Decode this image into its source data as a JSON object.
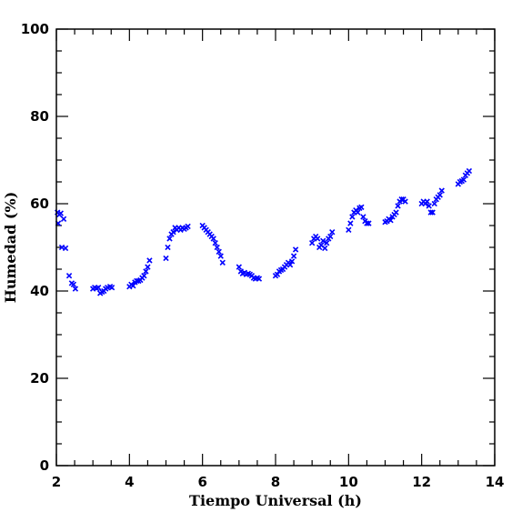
{
  "chart_data": {
    "type": "scatter",
    "title": "",
    "xlabel": "Tiempo Universal (h)",
    "ylabel": "Humedad (%)",
    "xlim": [
      2,
      14
    ],
    "ylim": [
      0,
      100
    ],
    "x_major_ticks": [
      2,
      4,
      6,
      8,
      10,
      12,
      14
    ],
    "y_major_ticks": [
      0,
      20,
      40,
      60,
      80,
      100
    ],
    "x_tick_labels": [
      "2",
      "4",
      "6",
      "8",
      "10",
      "12",
      "14"
    ],
    "y_tick_labels": [
      "0",
      "20",
      "40",
      "60",
      "80",
      "100"
    ],
    "marker": "x",
    "marker_color": "#0000ff",
    "grid": false,
    "series": [
      {
        "points": [
          [
            2.03,
            58.0
          ],
          [
            2.05,
            55.5
          ],
          [
            2.08,
            57.5
          ],
          [
            2.12,
            57.8
          ],
          [
            2.15,
            50.0
          ],
          [
            2.2,
            56.5
          ],
          [
            2.25,
            49.8
          ],
          [
            2.35,
            43.5
          ],
          [
            2.42,
            41.8
          ],
          [
            2.47,
            41.5
          ],
          [
            2.52,
            40.5
          ],
          [
            3.0,
            40.5
          ],
          [
            3.05,
            40.8
          ],
          [
            3.1,
            40.6
          ],
          [
            3.15,
            40.8
          ],
          [
            3.2,
            39.5
          ],
          [
            3.25,
            39.8
          ],
          [
            3.3,
            40.0
          ],
          [
            3.35,
            40.5
          ],
          [
            3.4,
            40.8
          ],
          [
            3.47,
            41.0
          ],
          [
            3.52,
            40.8
          ],
          [
            4.0,
            41.0
          ],
          [
            4.05,
            41.5
          ],
          [
            4.1,
            41.2
          ],
          [
            4.15,
            42.0
          ],
          [
            4.2,
            42.3
          ],
          [
            4.25,
            42.3
          ],
          [
            4.3,
            42.5
          ],
          [
            4.35,
            43.0
          ],
          [
            4.4,
            43.5
          ],
          [
            4.45,
            44.5
          ],
          [
            4.5,
            45.5
          ],
          [
            4.55,
            47.0
          ],
          [
            5.0,
            47.5
          ],
          [
            5.05,
            50.0
          ],
          [
            5.1,
            52.0
          ],
          [
            5.15,
            53.0
          ],
          [
            5.2,
            53.5
          ],
          [
            5.25,
            54.5
          ],
          [
            5.3,
            54.0
          ],
          [
            5.35,
            54.5
          ],
          [
            5.4,
            54.0
          ],
          [
            5.45,
            54.5
          ],
          [
            5.5,
            54.2
          ],
          [
            5.55,
            54.5
          ],
          [
            5.6,
            54.8
          ],
          [
            6.0,
            55.0
          ],
          [
            6.05,
            54.5
          ],
          [
            6.1,
            54.0
          ],
          [
            6.15,
            53.5
          ],
          [
            6.2,
            53.0
          ],
          [
            6.25,
            52.5
          ],
          [
            6.3,
            52.0
          ],
          [
            6.35,
            51.0
          ],
          [
            6.4,
            50.0
          ],
          [
            6.45,
            49.0
          ],
          [
            6.5,
            48.0
          ],
          [
            6.55,
            46.5
          ],
          [
            7.0,
            45.5
          ],
          [
            7.05,
            44.5
          ],
          [
            7.1,
            44.0
          ],
          [
            7.15,
            44.2
          ],
          [
            7.2,
            43.8
          ],
          [
            7.25,
            44.0
          ],
          [
            7.3,
            43.8
          ],
          [
            7.35,
            43.5
          ],
          [
            7.4,
            43.0
          ],
          [
            7.45,
            42.8
          ],
          [
            7.5,
            43.0
          ],
          [
            7.55,
            42.8
          ],
          [
            8.0,
            43.5
          ],
          [
            8.05,
            43.8
          ],
          [
            8.1,
            44.5
          ],
          [
            8.15,
            44.8
          ],
          [
            8.2,
            45.0
          ],
          [
            8.25,
            45.5
          ],
          [
            8.3,
            46.0
          ],
          [
            8.35,
            46.5
          ],
          [
            8.4,
            46.0
          ],
          [
            8.45,
            46.8
          ],
          [
            8.5,
            48.0
          ],
          [
            8.55,
            49.5
          ],
          [
            9.0,
            51.0
          ],
          [
            9.05,
            52.0
          ],
          [
            9.1,
            52.5
          ],
          [
            9.15,
            52.0
          ],
          [
            9.2,
            50.0
          ],
          [
            9.25,
            50.5
          ],
          [
            9.3,
            51.5
          ],
          [
            9.35,
            49.8
          ],
          [
            9.4,
            51.0
          ],
          [
            9.45,
            52.0
          ],
          [
            9.5,
            52.5
          ],
          [
            9.55,
            53.5
          ],
          [
            10.0,
            54.0
          ],
          [
            10.05,
            55.5
          ],
          [
            10.1,
            57.0
          ],
          [
            10.15,
            58.0
          ],
          [
            10.2,
            58.5
          ],
          [
            10.25,
            58.0
          ],
          [
            10.3,
            59.0
          ],
          [
            10.35,
            59.2
          ],
          [
            10.4,
            57.0
          ],
          [
            10.45,
            56.0
          ],
          [
            10.5,
            55.5
          ],
          [
            10.55,
            55.5
          ],
          [
            11.0,
            55.8
          ],
          [
            11.05,
            56.0
          ],
          [
            11.1,
            56.5
          ],
          [
            11.15,
            56.2
          ],
          [
            11.2,
            57.0
          ],
          [
            11.25,
            57.5
          ],
          [
            11.3,
            58.0
          ],
          [
            11.35,
            59.5
          ],
          [
            11.4,
            60.5
          ],
          [
            11.45,
            61.0
          ],
          [
            11.5,
            61.0
          ],
          [
            11.55,
            60.5
          ],
          [
            12.0,
            60.0
          ],
          [
            12.05,
            60.5
          ],
          [
            12.1,
            60.0
          ],
          [
            12.15,
            60.5
          ],
          [
            12.2,
            59.5
          ],
          [
            12.25,
            58.0
          ],
          [
            12.3,
            58.0
          ],
          [
            12.35,
            60.0
          ],
          [
            12.4,
            61.0
          ],
          [
            12.45,
            61.5
          ],
          [
            12.5,
            62.0
          ],
          [
            12.55,
            63.0
          ],
          [
            13.0,
            64.5
          ],
          [
            13.05,
            65.0
          ],
          [
            13.1,
            65.2
          ],
          [
            13.15,
            65.5
          ],
          [
            13.2,
            66.5
          ],
          [
            13.25,
            67.0
          ],
          [
            13.3,
            67.5
          ]
        ]
      }
    ]
  }
}
